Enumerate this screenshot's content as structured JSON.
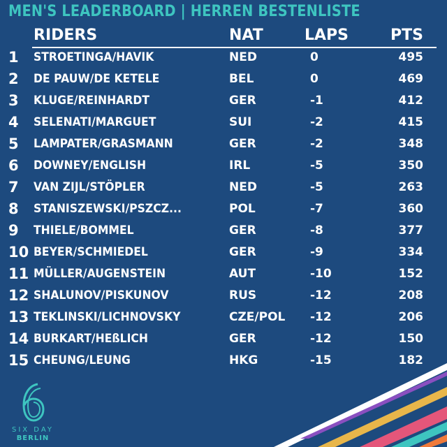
{
  "title": "MEN'S LEADERBOARD | HERREN BESTENLISTE",
  "headers": {
    "riders": "RIDERS",
    "nat": "NAT",
    "laps": "LAPS",
    "pts": "PTS"
  },
  "rows": [
    {
      "rank": "1",
      "riders": "STROETINGA/HAVIK",
      "nat": "NED",
      "laps": "0",
      "pts": "495"
    },
    {
      "rank": "2",
      "riders": "DE PAUW/DE KETELE",
      "nat": "BEL",
      "laps": "0",
      "pts": "469"
    },
    {
      "rank": "3",
      "riders": "KLUGE/REINHARDT",
      "nat": "GER",
      "laps": "-1",
      "pts": "412"
    },
    {
      "rank": "4",
      "riders": "SELENATI/MARGUET",
      "nat": "SUI",
      "laps": "-2",
      "pts": "415"
    },
    {
      "rank": "5",
      "riders": "LAMPATER/GRASMANN",
      "nat": "GER",
      "laps": "-2",
      "pts": "348"
    },
    {
      "rank": "6",
      "riders": "DOWNEY/ENGLISH",
      "nat": "IRL",
      "laps": "-5",
      "pts": "350"
    },
    {
      "rank": "7",
      "riders": "VAN ZIJL/STÖPLER",
      "nat": "NED",
      "laps": "-5",
      "pts": "263"
    },
    {
      "rank": "8",
      "riders": "STANISZEWSKI/PSZCZ...",
      "nat": "POL",
      "laps": "-7",
      "pts": "360"
    },
    {
      "rank": "9",
      "riders": "THIELE/BOMMEL",
      "nat": "GER",
      "laps": "-8",
      "pts": "377"
    },
    {
      "rank": "10",
      "riders": "BEYER/SCHMIEDEL",
      "nat": "GER",
      "laps": "-9",
      "pts": "334"
    },
    {
      "rank": "11",
      "riders": "MÜLLER/AUGENSTEIN",
      "nat": "AUT",
      "laps": "-10",
      "pts": "152"
    },
    {
      "rank": "12",
      "riders": "SHALUNOV/PISKUNOV",
      "nat": "RUS",
      "laps": "-12",
      "pts": "208"
    },
    {
      "rank": "13",
      "riders": "TEKLINSKI/LICHNOVSKY",
      "nat": "CZE/POL",
      "laps": "-12",
      "pts": "206"
    },
    {
      "rank": "14",
      "riders": "BURKART/HEßLICH",
      "nat": "GER",
      "laps": "-12",
      "pts": "150"
    },
    {
      "rank": "15",
      "riders": "CHEUNG/LEUNG",
      "nat": "HKG",
      "laps": "-15",
      "pts": "182"
    }
  ],
  "logo": {
    "numeral": "6",
    "line1": "SIX DAY",
    "line2": "BERLIN"
  },
  "colors": {
    "background": "#1d4a7e",
    "title": "#3ec5c0",
    "text": "#ffffff",
    "stripes": [
      "#ffffff",
      "#e8b64a",
      "#e4567a",
      "#8a4fc0",
      "#3ec5c0",
      "#f07a3a"
    ]
  }
}
